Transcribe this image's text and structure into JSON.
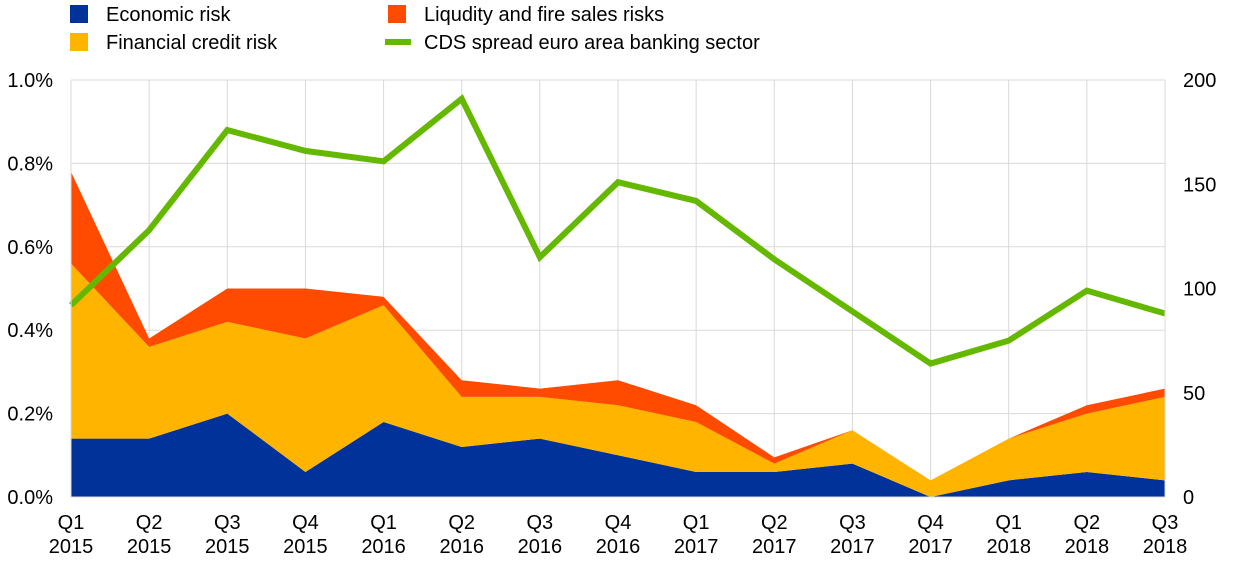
{
  "chart_data": {
    "type": "area",
    "categories": [
      {
        "q": "Q1",
        "y": "2015"
      },
      {
        "q": "Q2",
        "y": "2015"
      },
      {
        "q": "Q3",
        "y": "2015"
      },
      {
        "q": "Q4",
        "y": "2015"
      },
      {
        "q": "Q1",
        "y": "2016"
      },
      {
        "q": "Q2",
        "y": "2016"
      },
      {
        "q": "Q3",
        "y": "2016"
      },
      {
        "q": "Q4",
        "y": "2016"
      },
      {
        "q": "Q1",
        "y": "2017"
      },
      {
        "q": "Q2",
        "y": "2017"
      },
      {
        "q": "Q3",
        "y": "2017"
      },
      {
        "q": "Q4",
        "y": "2017"
      },
      {
        "q": "Q1",
        "y": "2018"
      },
      {
        "q": "Q2",
        "y": "2018"
      },
      {
        "q": "Q3",
        "y": "2018"
      }
    ],
    "stacked_series": [
      {
        "name": "Economic risk",
        "color": "#003299",
        "values": [
          0.14,
          0.14,
          0.2,
          0.06,
          0.18,
          0.12,
          0.14,
          0.1,
          0.06,
          0.06,
          0.08,
          0.0,
          0.04,
          0.06,
          0.04
        ]
      },
      {
        "name": "Financial credit risk",
        "color": "#FFB400",
        "values": [
          0.42,
          0.22,
          0.22,
          0.32,
          0.28,
          0.12,
          0.1,
          0.12,
          0.12,
          0.02,
          0.08,
          0.04,
          0.1,
          0.14,
          0.2
        ]
      },
      {
        "name": "Liqudity and fire sales risks",
        "color": "#FF4B00",
        "values": [
          0.22,
          0.02,
          0.08,
          0.12,
          0.02,
          0.04,
          0.02,
          0.06,
          0.04,
          0.015,
          0.0,
          0.0,
          0.0,
          0.02,
          0.02
        ]
      }
    ],
    "line_series": {
      "name": "CDS spread euro area banking sector",
      "color": "#65B800",
      "axis": "right",
      "values": [
        92,
        128,
        176,
        166,
        161,
        191,
        115,
        151,
        142,
        114,
        89,
        64,
        75,
        99,
        88
      ]
    },
    "left_axis": {
      "min": 0,
      "max": 1.0,
      "ticks": [
        "0.0%",
        "0.2%",
        "0.4%",
        "0.6%",
        "0.8%",
        "1.0%"
      ]
    },
    "right_axis": {
      "min": 0,
      "max": 200,
      "ticks": [
        "0",
        "50",
        "100",
        "150",
        "200"
      ]
    },
    "legend_order": [
      {
        "label": "Economic risk",
        "kind": "square",
        "color": "#003299"
      },
      {
        "label": "Liqudity and fire sales risks",
        "kind": "square",
        "color": "#FF4B00"
      },
      {
        "label": "Financial credit risk",
        "kind": "square",
        "color": "#FFB400"
      },
      {
        "label": "CDS spread euro area banking sector",
        "kind": "line",
        "color": "#65B800"
      }
    ],
    "title": "",
    "xlabel": "",
    "ylabel": "",
    "grid": true,
    "legend_position": "top-left"
  }
}
